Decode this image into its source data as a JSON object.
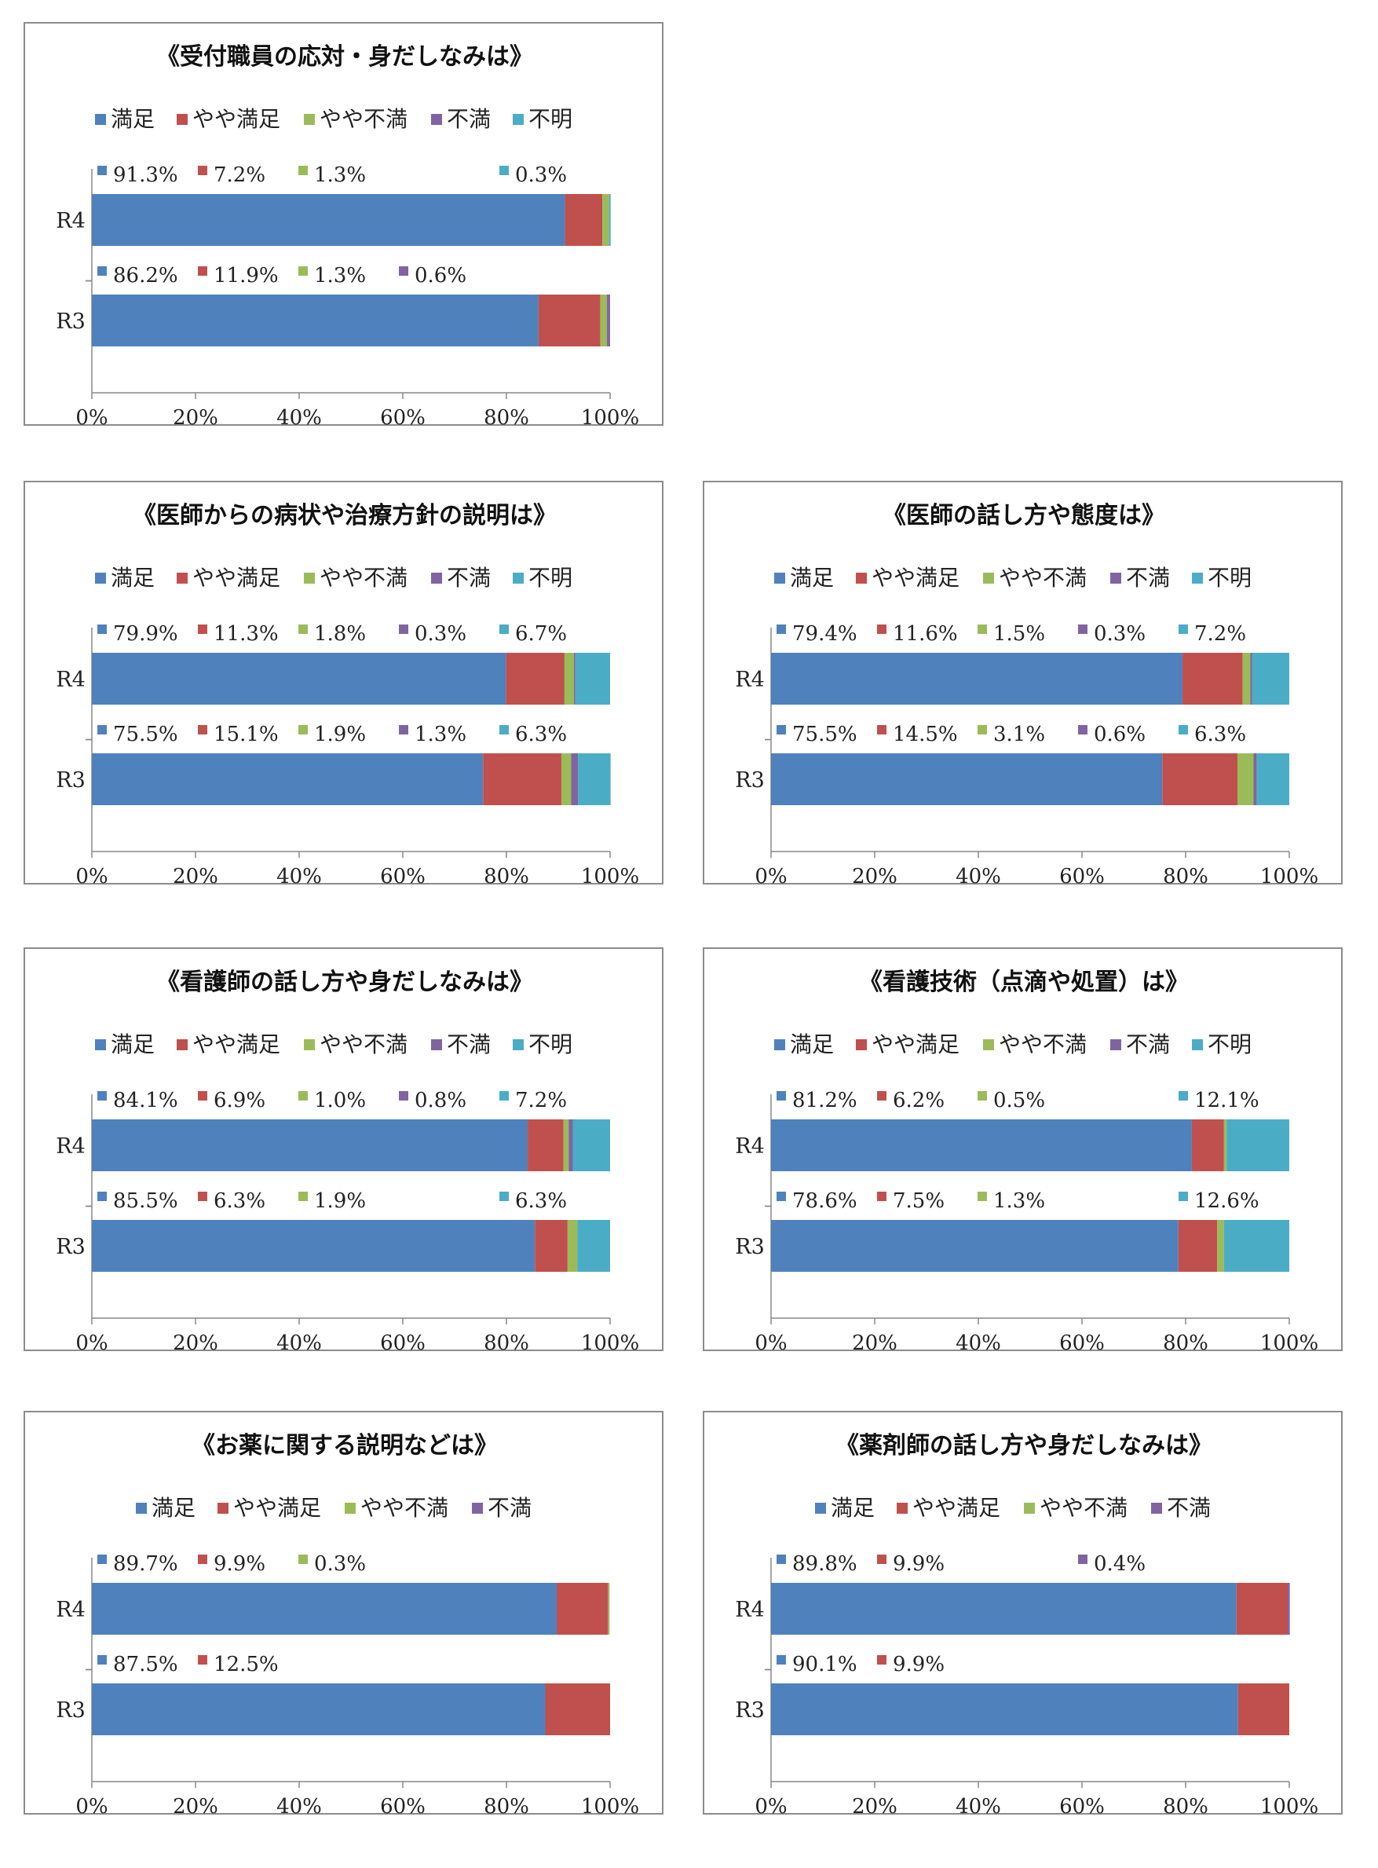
{
  "colors": {
    "満足": "#4f81bd",
    "やや満足": "#c0504d",
    "やや不満": "#9bbb59",
    "不満": "#8064a2",
    "不明": "#4bacc6"
  },
  "chart_data": [
    {
      "type": "bar",
      "orientation": "horizontal",
      "stacked": true,
      "percent": true,
      "title": "《受付職員の応対・身だしなみは》",
      "legend": [
        "満足",
        "やや満足",
        "やや不満",
        "不満",
        "不明"
      ],
      "legend_position": "top",
      "categories": [
        "R4",
        "R3"
      ],
      "series": [
        {
          "name": "満足",
          "values": [
            91.3,
            86.2
          ],
          "labels": [
            "91.3%",
            "86.2%"
          ]
        },
        {
          "name": "やや満足",
          "values": [
            7.2,
            11.9
          ],
          "labels": [
            "7.2%",
            "11.9%"
          ]
        },
        {
          "name": "やや不満",
          "values": [
            1.3,
            1.3
          ],
          "labels": [
            "1.3%",
            "1.3%"
          ]
        },
        {
          "name": "不満",
          "values": [
            0,
            0.6
          ],
          "labels": [
            "",
            "0.6%"
          ]
        },
        {
          "name": "不明",
          "values": [
            0.3,
            0
          ],
          "labels": [
            "0.3%",
            ""
          ]
        }
      ],
      "xlim": [
        0,
        100
      ],
      "x_ticks": [
        "0%",
        "20%",
        "40%",
        "60%",
        "80%",
        "100%"
      ]
    },
    {
      "type": "bar",
      "orientation": "horizontal",
      "stacked": true,
      "percent": true,
      "title": "《医師からの病状や治療方針の説明は》",
      "legend": [
        "満足",
        "やや満足",
        "やや不満",
        "不満",
        "不明"
      ],
      "legend_position": "top",
      "categories": [
        "R4",
        "R3"
      ],
      "series": [
        {
          "name": "満足",
          "values": [
            79.9,
            75.5
          ],
          "labels": [
            "79.9%",
            "75.5%"
          ]
        },
        {
          "name": "やや満足",
          "values": [
            11.3,
            15.1
          ],
          "labels": [
            "11.3%",
            "15.1%"
          ]
        },
        {
          "name": "やや不満",
          "values": [
            1.8,
            1.9
          ],
          "labels": [
            "1.8%",
            "1.9%"
          ]
        },
        {
          "name": "不満",
          "values": [
            0.3,
            1.3
          ],
          "labels": [
            "0.3%",
            "1.3%"
          ]
        },
        {
          "name": "不明",
          "values": [
            6.7,
            6.3
          ],
          "labels": [
            "6.7%",
            "6.3%"
          ]
        }
      ],
      "xlim": [
        0,
        100
      ],
      "x_ticks": [
        "0%",
        "20%",
        "40%",
        "60%",
        "80%",
        "100%"
      ]
    },
    {
      "type": "bar",
      "orientation": "horizontal",
      "stacked": true,
      "percent": true,
      "title": "《医師の話し方や態度は》",
      "legend": [
        "満足",
        "やや満足",
        "やや不満",
        "不満",
        "不明"
      ],
      "legend_position": "top",
      "categories": [
        "R4",
        "R3"
      ],
      "series": [
        {
          "name": "満足",
          "values": [
            79.4,
            75.5
          ],
          "labels": [
            "79.4%",
            "75.5%"
          ]
        },
        {
          "name": "やや満足",
          "values": [
            11.6,
            14.5
          ],
          "labels": [
            "11.6%",
            "14.5%"
          ]
        },
        {
          "name": "やや不満",
          "values": [
            1.5,
            3.1
          ],
          "labels": [
            "1.5%",
            "3.1%"
          ]
        },
        {
          "name": "不満",
          "values": [
            0.3,
            0.6
          ],
          "labels": [
            "0.3%",
            "0.6%"
          ]
        },
        {
          "name": "不明",
          "values": [
            7.2,
            6.3
          ],
          "labels": [
            "7.2%",
            "6.3%"
          ]
        }
      ],
      "xlim": [
        0,
        100
      ],
      "x_ticks": [
        "0%",
        "20%",
        "40%",
        "60%",
        "80%",
        "100%"
      ]
    },
    {
      "type": "bar",
      "orientation": "horizontal",
      "stacked": true,
      "percent": true,
      "title": "《看護師の話し方や身だしなみは》",
      "legend": [
        "満足",
        "やや満足",
        "やや不満",
        "不満",
        "不明"
      ],
      "legend_position": "top",
      "categories": [
        "R4",
        "R3"
      ],
      "series": [
        {
          "name": "満足",
          "values": [
            84.1,
            85.5
          ],
          "labels": [
            "84.1%",
            "85.5%"
          ]
        },
        {
          "name": "やや満足",
          "values": [
            6.9,
            6.3
          ],
          "labels": [
            "6.9%",
            "6.3%"
          ]
        },
        {
          "name": "やや不満",
          "values": [
            1.0,
            1.9
          ],
          "labels": [
            "1.0%",
            "1.9%"
          ]
        },
        {
          "name": "不満",
          "values": [
            0.8,
            0
          ],
          "labels": [
            "0.8%",
            ""
          ]
        },
        {
          "name": "不明",
          "values": [
            7.2,
            6.3
          ],
          "labels": [
            "7.2%",
            "6.3%"
          ]
        }
      ],
      "xlim": [
        0,
        100
      ],
      "x_ticks": [
        "0%",
        "20%",
        "40%",
        "60%",
        "80%",
        "100%"
      ]
    },
    {
      "type": "bar",
      "orientation": "horizontal",
      "stacked": true,
      "percent": true,
      "title": "《看護技術（点滴や処置）は》",
      "legend": [
        "満足",
        "やや満足",
        "やや不満",
        "不満",
        "不明"
      ],
      "legend_position": "top",
      "categories": [
        "R4",
        "R3"
      ],
      "series": [
        {
          "name": "満足",
          "values": [
            81.2,
            78.6
          ],
          "labels": [
            "81.2%",
            "78.6%"
          ]
        },
        {
          "name": "やや満足",
          "values": [
            6.2,
            7.5
          ],
          "labels": [
            "6.2%",
            "7.5%"
          ]
        },
        {
          "name": "やや不満",
          "values": [
            0.5,
            1.3
          ],
          "labels": [
            "0.5%",
            "1.3%"
          ]
        },
        {
          "name": "不満",
          "values": [
            0,
            0
          ],
          "labels": [
            "",
            ""
          ]
        },
        {
          "name": "不明",
          "values": [
            12.1,
            12.6
          ],
          "labels": [
            "12.1%",
            "12.6%"
          ]
        }
      ],
      "xlim": [
        0,
        100
      ],
      "x_ticks": [
        "0%",
        "20%",
        "40%",
        "60%",
        "80%",
        "100%"
      ]
    },
    {
      "type": "bar",
      "orientation": "horizontal",
      "stacked": true,
      "percent": true,
      "title": "《お薬に関する説明などは》",
      "legend": [
        "満足",
        "やや満足",
        "やや不満",
        "不満"
      ],
      "legend_position": "top",
      "categories": [
        "R4",
        "R3"
      ],
      "series": [
        {
          "name": "満足",
          "values": [
            89.7,
            87.5
          ],
          "labels": [
            "89.7%",
            "87.5%"
          ]
        },
        {
          "name": "やや満足",
          "values": [
            9.9,
            12.5
          ],
          "labels": [
            "9.9%",
            "12.5%"
          ]
        },
        {
          "name": "やや不満",
          "values": [
            0.3,
            0
          ],
          "labels": [
            "0.3%",
            ""
          ]
        },
        {
          "name": "不満",
          "values": [
            0,
            0
          ],
          "labels": [
            "",
            ""
          ]
        }
      ],
      "xlim": [
        0,
        100
      ],
      "x_ticks": [
        "0%",
        "20%",
        "40%",
        "60%",
        "80%",
        "100%"
      ]
    },
    {
      "type": "bar",
      "orientation": "horizontal",
      "stacked": true,
      "percent": true,
      "title": "《薬剤師の話し方や身だしなみは》",
      "legend": [
        "満足",
        "やや満足",
        "やや不満",
        "不満"
      ],
      "legend_position": "top",
      "categories": [
        "R4",
        "R3"
      ],
      "series": [
        {
          "name": "満足",
          "values": [
            89.8,
            90.1
          ],
          "labels": [
            "89.8%",
            "90.1%"
          ]
        },
        {
          "name": "やや満足",
          "values": [
            9.9,
            9.9
          ],
          "labels": [
            "9.9%",
            "9.9%"
          ]
        },
        {
          "name": "やや不満",
          "values": [
            0,
            0
          ],
          "labels": [
            "",
            ""
          ]
        },
        {
          "name": "不満",
          "values": [
            0.4,
            0
          ],
          "labels": [
            "0.4%",
            ""
          ]
        }
      ],
      "xlim": [
        0,
        100
      ],
      "x_ticks": [
        "0%",
        "20%",
        "40%",
        "60%",
        "80%",
        "100%"
      ]
    }
  ]
}
